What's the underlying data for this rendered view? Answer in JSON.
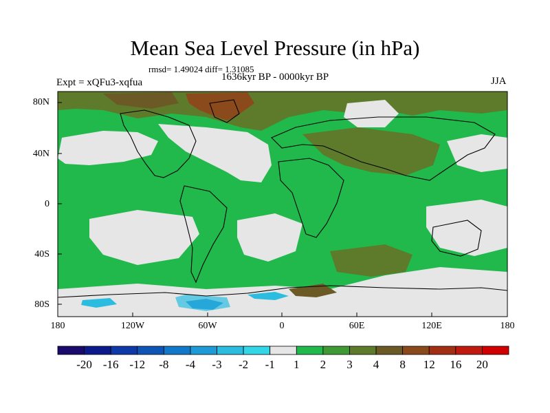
{
  "title": "Mean Sea Level Pressure (in hPa)",
  "stats": "rmsd= 1.49024 diff= 1.31085",
  "period": "1636kyr BP - 0000kyr BP",
  "experiment": "Expt = xQFu3-xqfua",
  "season": "JJA",
  "lat_labels": [
    "80N",
    "40N",
    "0",
    "40S",
    "80S"
  ],
  "lon_labels": [
    "180",
    "120W",
    "60W",
    "0",
    "60E",
    "120E",
    "180"
  ],
  "colorbar": {
    "labels": [
      "-20",
      "-16",
      "-12",
      "-8",
      "-4",
      "-3",
      "-2",
      "-1",
      "1",
      "2",
      "3",
      "4",
      "8",
      "12",
      "16",
      "20"
    ],
    "colors": [
      "#1a0a6b",
      "#0c1a8c",
      "#0d3aa8",
      "#0f55b5",
      "#1478c8",
      "#1e9ad6",
      "#2cbce0",
      "#33d6e6",
      "#e6e6e6",
      "#21b94b",
      "#3f9a36",
      "#5e7a2b",
      "#6b5a25",
      "#8a4a1c",
      "#a22e14",
      "#c01a0e",
      "#d00000"
    ]
  },
  "fill_colors": {
    "ocean_base": "#21b94b",
    "near_zero": "#e6e6e6",
    "mid_high": "#5e7a2b",
    "high": "#6b5a25",
    "very_high": "#8a4a1c",
    "low": "#1478c8",
    "lower": "#2cbce0",
    "coast": "#000000"
  }
}
